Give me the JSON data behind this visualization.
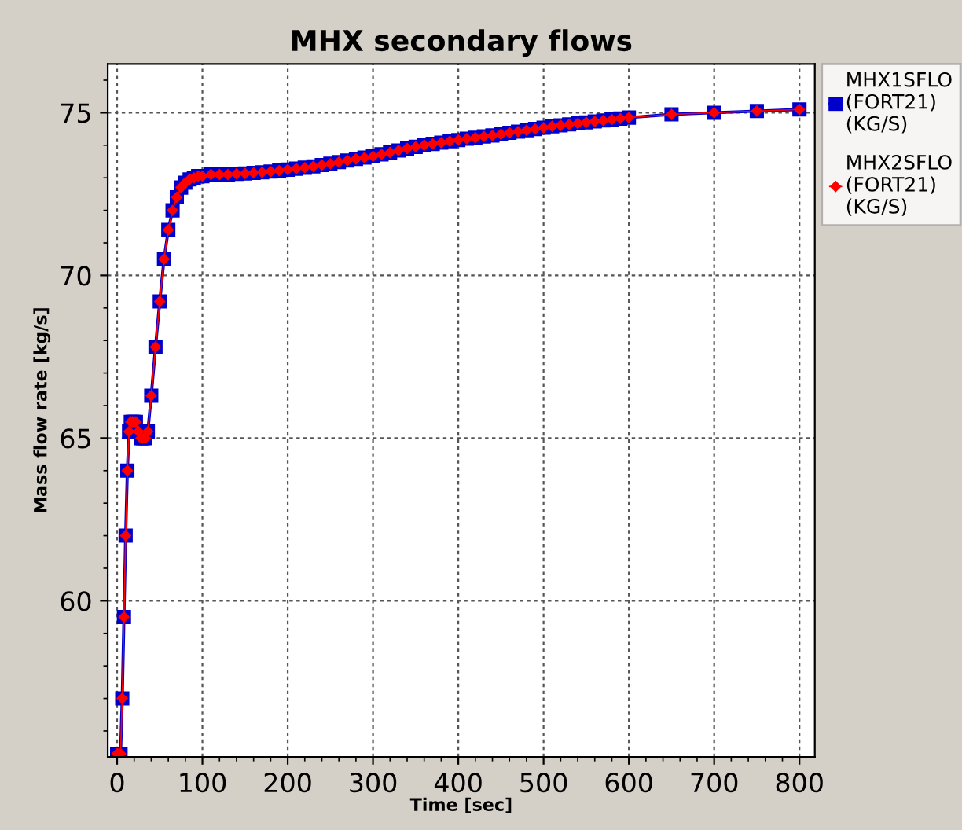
{
  "chart_data": {
    "type": "line",
    "title": "MHX secondary flows",
    "xlabel": "Time [sec]",
    "ylabel": "Mass flow rate [kg/s]",
    "x": [
      0,
      2,
      4,
      6,
      8,
      10,
      12,
      14,
      16,
      18,
      20,
      22,
      25,
      28,
      30,
      33,
      36,
      40,
      45,
      50,
      55,
      60,
      65,
      70,
      75,
      80,
      85,
      90,
      95,
      100,
      110,
      120,
      130,
      140,
      150,
      160,
      170,
      180,
      190,
      200,
      210,
      220,
      230,
      240,
      250,
      260,
      270,
      280,
      290,
      300,
      310,
      320,
      330,
      340,
      350,
      360,
      370,
      380,
      390,
      400,
      410,
      420,
      430,
      440,
      450,
      460,
      470,
      480,
      490,
      500,
      510,
      520,
      530,
      540,
      550,
      560,
      570,
      580,
      590,
      600,
      650,
      700,
      750,
      800
    ],
    "series": [
      {
        "name": "MHX1SFLO\n(FORT21)\n(KG/S)",
        "color": "#0000cc",
        "marker": "square",
        "values": [
          55.3,
          55.3,
          55.3,
          57,
          59.5,
          62,
          64,
          65.2,
          65.5,
          65.5,
          65.5,
          65.5,
          65.2,
          65.0,
          65.0,
          65.0,
          65.2,
          66.3,
          67.8,
          69.2,
          70.5,
          71.4,
          72.0,
          72.4,
          72.7,
          72.85,
          72.95,
          73.0,
          73.05,
          73.05,
          73.1,
          73.1,
          73.1,
          73.12,
          73.13,
          73.15,
          73.17,
          73.19,
          73.22,
          73.25,
          73.28,
          73.31,
          73.35,
          73.39,
          73.43,
          73.48,
          73.53,
          73.58,
          73.62,
          73.66,
          73.72,
          73.78,
          73.84,
          73.9,
          73.95,
          74.0,
          74.04,
          74.08,
          74.12,
          74.16,
          74.2,
          74.23,
          74.27,
          74.3,
          74.34,
          74.38,
          74.42,
          74.46,
          74.5,
          74.54,
          74.58,
          74.61,
          74.64,
          74.67,
          74.7,
          74.73,
          74.76,
          74.79,
          74.82,
          74.85,
          74.95,
          75.0,
          75.05,
          75.1
        ]
      },
      {
        "name": "MHX2SFLO\n(FORT21)\n(KG/S)",
        "color": "#ff0000",
        "marker": "diamond",
        "values": [
          55.3,
          55.3,
          55.3,
          57,
          59.5,
          62,
          64,
          65.2,
          65.5,
          65.5,
          65.5,
          65.5,
          65.2,
          65.0,
          65.0,
          65.0,
          65.2,
          66.3,
          67.8,
          69.2,
          70.5,
          71.4,
          72.0,
          72.4,
          72.7,
          72.85,
          72.95,
          73.0,
          73.05,
          73.05,
          73.1,
          73.1,
          73.1,
          73.12,
          73.13,
          73.15,
          73.17,
          73.19,
          73.22,
          73.25,
          73.28,
          73.31,
          73.35,
          73.39,
          73.43,
          73.48,
          73.53,
          73.58,
          73.62,
          73.66,
          73.72,
          73.78,
          73.84,
          73.9,
          73.95,
          74.0,
          74.04,
          74.08,
          74.12,
          74.16,
          74.2,
          74.23,
          74.27,
          74.3,
          74.34,
          74.38,
          74.42,
          74.46,
          74.5,
          74.54,
          74.58,
          74.61,
          74.64,
          74.67,
          74.7,
          74.73,
          74.76,
          74.79,
          74.82,
          74.85,
          74.95,
          75.0,
          75.05,
          75.1
        ]
      }
    ],
    "xlim": [
      -11,
      818
    ],
    "ylim": [
      55.2,
      76.5
    ],
    "xticks": [
      0,
      100,
      200,
      300,
      400,
      500,
      600,
      700,
      800
    ],
    "yticks": [
      60,
      65,
      70,
      75
    ],
    "grid": true,
    "legend": "right"
  }
}
